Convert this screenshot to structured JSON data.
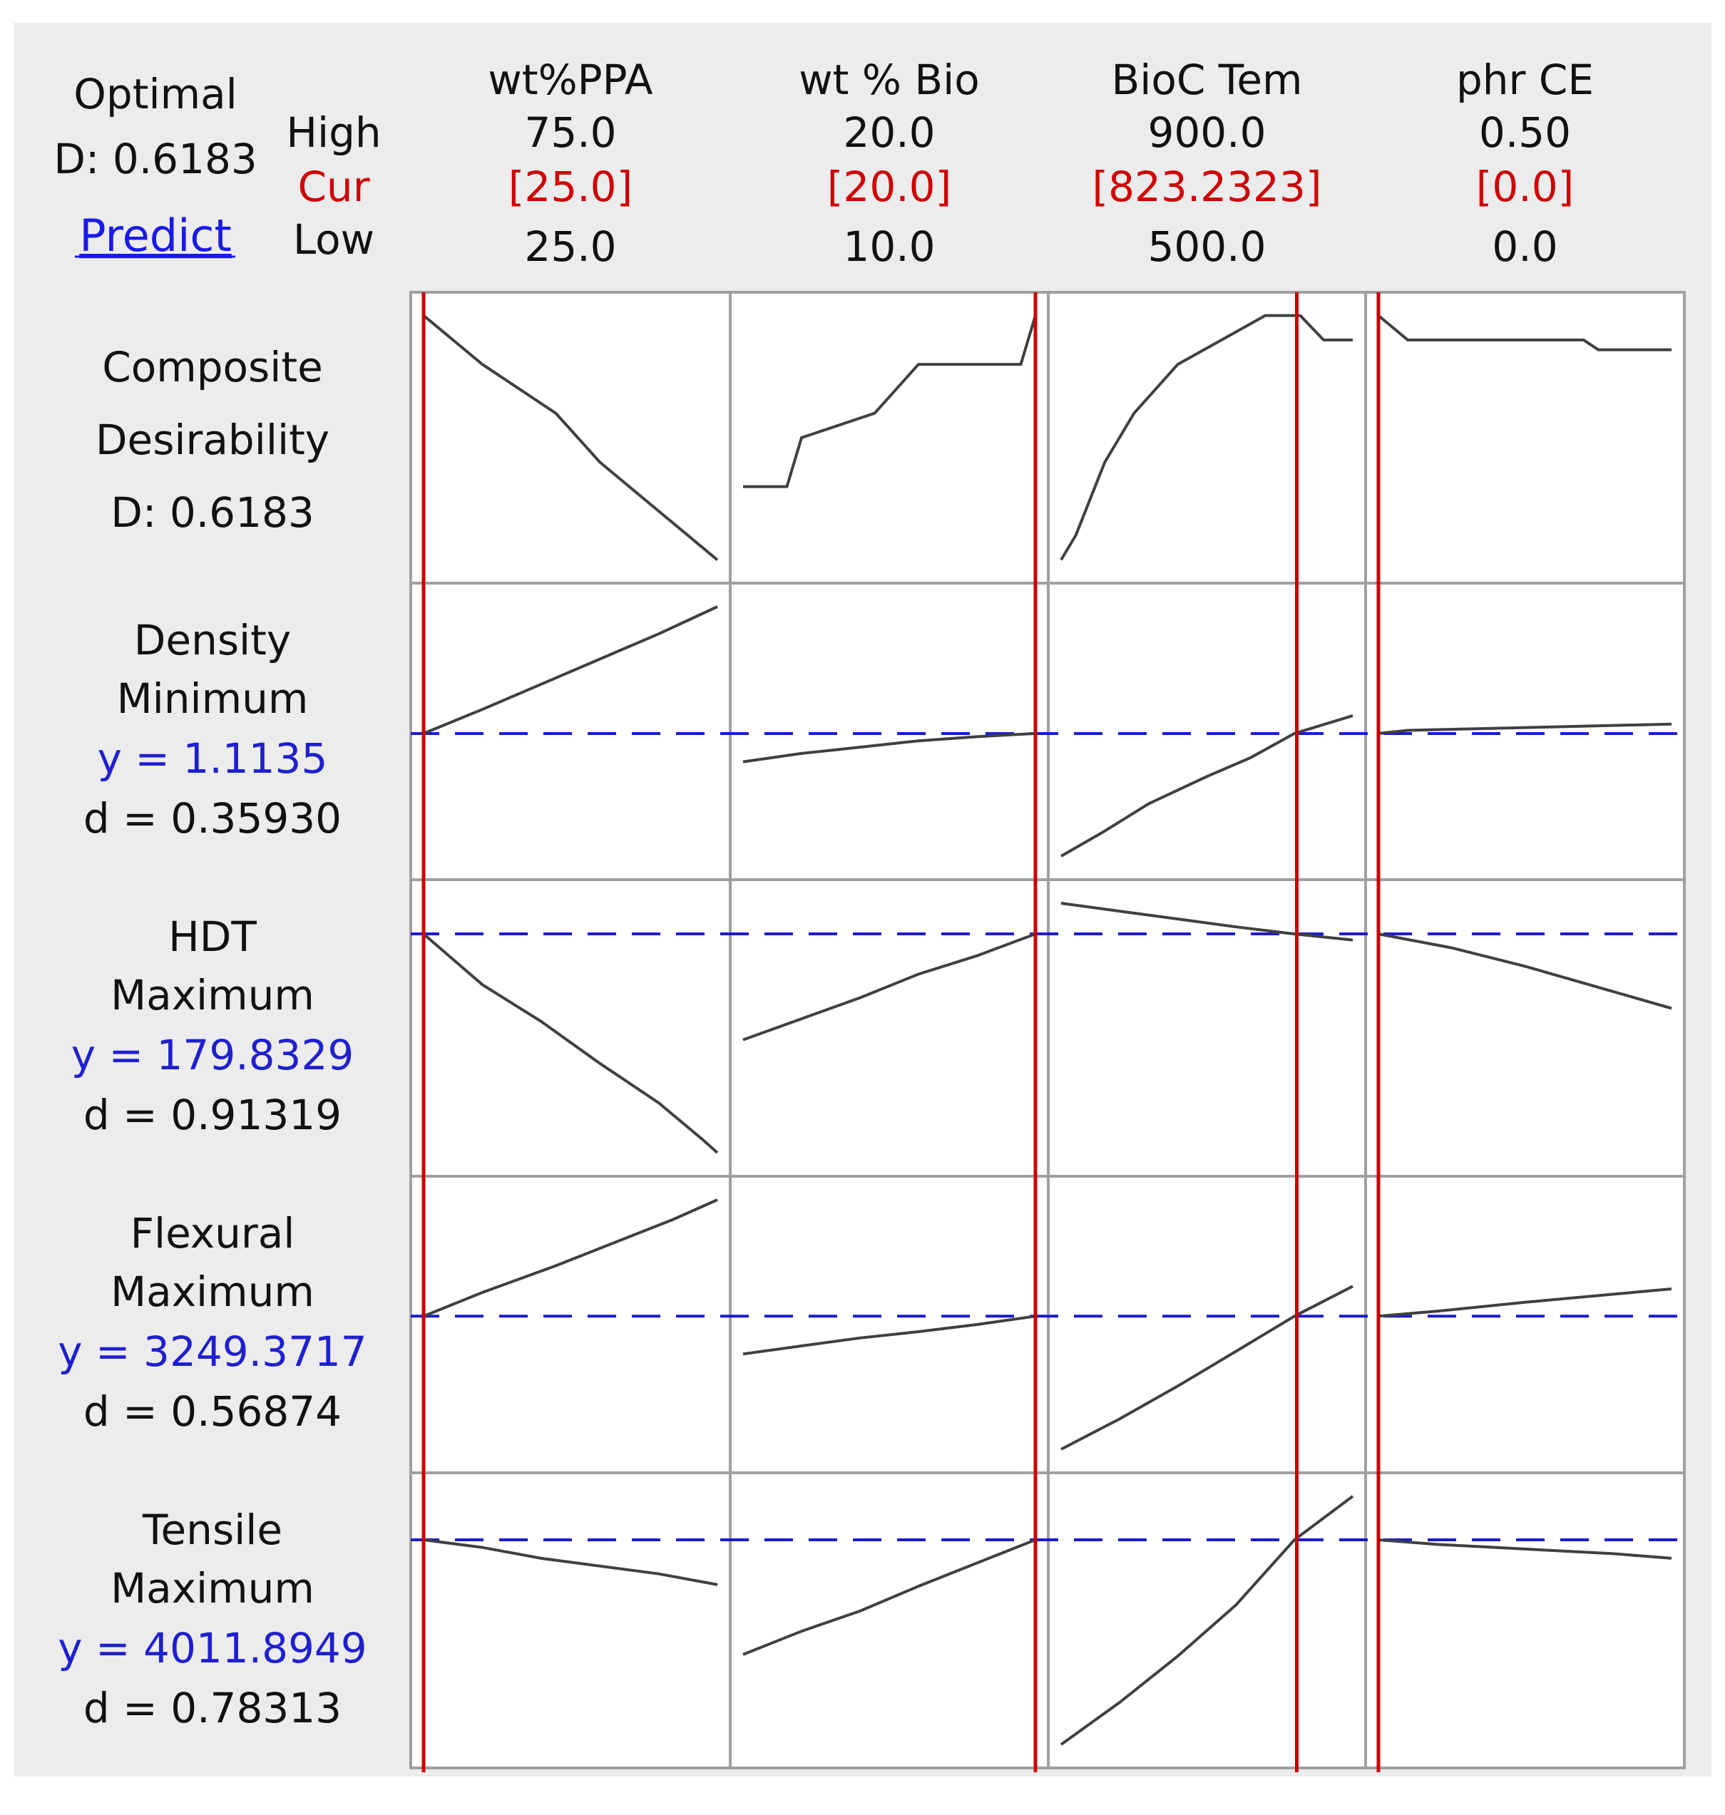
{
  "header": {
    "optimal_label": "Optimal",
    "optimal_d": "D: 0.6183",
    "predict_link": "Predict",
    "row_labels": {
      "high": "High",
      "cur": "Cur",
      "low": "Low"
    }
  },
  "factors": [
    {
      "name": "wt%PPA",
      "high": "75.0",
      "cur": "[25.0]",
      "low": "25.0"
    },
    {
      "name": "wt % Bio",
      "high": "20.0",
      "cur": "[20.0]",
      "low": "10.0"
    },
    {
      "name": "BioC Tem",
      "high": "900.0",
      "cur": "[823.2323]",
      "low": "500.0"
    },
    {
      "name": "phr CE",
      "high": "0.50",
      "cur": "[0.0]",
      "low": "0.0"
    }
  ],
  "responses": [
    {
      "line1": "Composite",
      "line2": "Desirability",
      "line3": "D: 0.6183"
    },
    {
      "line1": "Density",
      "line2": "Minimum",
      "y": "y  =  1.1135",
      "d": "d  =  0.35930"
    },
    {
      "line1": "HDT",
      "line2": "Maximum",
      "y": "y  =  179.8329",
      "d": "d  =  0.91319"
    },
    {
      "line1": "Flexural",
      "line2": "Maximum",
      "y": "y  =  3249.3717",
      "d": "d  =  0.56874"
    },
    {
      "line1": "Tensile",
      "line2": "Maximum",
      "y": "y  =  4011.8949",
      "d": "d  =  0.78313"
    }
  ],
  "colors": {
    "current_line": "#cc0000",
    "reference_line": "#1a1ad6",
    "curve": "#404040",
    "cur_text": "#d00000",
    "y_text": "#1f1fd0",
    "link": "#1a1ae6",
    "panel": "#ececec"
  },
  "chart_data": {
    "type": "line",
    "title": "Optimal D: 0.6183",
    "factors": [
      "wt%PPA",
      "wt % Bio",
      "BioC Tem",
      "phr CE"
    ],
    "factor_ranges": [
      [
        25.0,
        75.0
      ],
      [
        10.0,
        20.0
      ],
      [
        500.0,
        900.0
      ],
      [
        0.0,
        0.5
      ]
    ],
    "current_settings": [
      25.0,
      20.0,
      823.2323,
      0.0
    ],
    "grid": false,
    "rows": [
      {
        "response": "Composite Desirability",
        "value": 0.6183,
        "series": [
          [
            [
              0,
              0.62
            ],
            [
              0.2,
              0.61
            ],
            [
              0.45,
              0.6
            ],
            [
              0.6,
              0.59
            ],
            [
              0.8,
              0.58
            ],
            [
              1,
              0.57
            ]
          ],
          [
            [
              0,
              0.585
            ],
            [
              0.15,
              0.585
            ],
            [
              0.2,
              0.595
            ],
            [
              0.45,
              0.6
            ],
            [
              0.6,
              0.61
            ],
            [
              0.8,
              0.61
            ],
            [
              0.95,
              0.61
            ],
            [
              1,
              0.62
            ]
          ],
          [
            [
              0,
              0.57
            ],
            [
              0.05,
              0.575
            ],
            [
              0.15,
              0.59
            ],
            [
              0.25,
              0.6
            ],
            [
              0.4,
              0.61
            ],
            [
              0.55,
              0.615
            ],
            [
              0.7,
              0.62
            ],
            [
              0.78,
              0.62
            ],
            [
              0.82,
              0.62
            ],
            [
              0.9,
              0.615
            ],
            [
              1,
              0.615
            ]
          ],
          [
            [
              0,
              0.62
            ],
            [
              0.1,
              0.615
            ],
            [
              0.7,
              0.615
            ],
            [
              0.75,
              0.613
            ],
            [
              1,
              0.613
            ]
          ]
        ]
      },
      {
        "response": "Density",
        "goal": "Minimum",
        "y": 1.1135,
        "d": 0.3593,
        "series": [
          [
            [
              0,
              1.1135
            ],
            [
              0.2,
              1.125
            ],
            [
              0.4,
              1.137
            ],
            [
              0.6,
              1.149
            ],
            [
              0.8,
              1.161
            ],
            [
              1,
              1.174
            ]
          ],
          [
            [
              0,
              1.1
            ],
            [
              0.2,
              1.104
            ],
            [
              0.4,
              1.107
            ],
            [
              0.6,
              1.11
            ],
            [
              0.8,
              1.112
            ],
            [
              1,
              1.1135
            ]
          ],
          [
            [
              0,
              1.055
            ],
            [
              0.15,
              1.067
            ],
            [
              0.3,
              1.08
            ],
            [
              0.5,
              1.093
            ],
            [
              0.65,
              1.102
            ],
            [
              0.8,
              1.1135
            ],
            [
              1,
              1.122
            ]
          ],
          [
            [
              0,
              1.1135
            ],
            [
              0.1,
              1.115
            ],
            [
              0.4,
              1.116
            ],
            [
              0.7,
              1.117
            ],
            [
              1,
              1.118
            ]
          ]
        ]
      },
      {
        "response": "HDT",
        "goal": "Maximum",
        "y": 179.8329,
        "d": 0.91319,
        "series": [
          [
            [
              0,
              179.83
            ],
            [
              0.2,
              177.9
            ],
            [
              0.4,
              176.5
            ],
            [
              0.6,
              174.9
            ],
            [
              0.8,
              173.4
            ],
            [
              0.95,
              172.0
            ],
            [
              1,
              171.5
            ]
          ],
          [
            [
              0,
              175.8
            ],
            [
              0.2,
              176.6
            ],
            [
              0.4,
              177.4
            ],
            [
              0.6,
              178.3
            ],
            [
              0.8,
              179.0
            ],
            [
              1,
              179.83
            ]
          ],
          [
            [
              0,
              181.0
            ],
            [
              0.2,
              180.7
            ],
            [
              0.4,
              180.4
            ],
            [
              0.6,
              180.1
            ],
            [
              0.8,
              179.83
            ],
            [
              1,
              179.6
            ]
          ],
          [
            [
              0,
              179.83
            ],
            [
              0.25,
              179.3
            ],
            [
              0.5,
              178.6
            ],
            [
              0.75,
              177.8
            ],
            [
              1,
              177.0
            ]
          ]
        ]
      },
      {
        "response": "Flexural",
        "goal": "Maximum",
        "y": 3249.3717,
        "d": 0.56874,
        "series": [
          [
            [
              0,
              3249.4
            ],
            [
              0.2,
              3276
            ],
            [
              0.45,
              3306
            ],
            [
              0.65,
              3332
            ],
            [
              0.85,
              3358
            ],
            [
              1,
              3380
            ]
          ],
          [
            [
              0,
              3207
            ],
            [
              0.2,
              3216
            ],
            [
              0.4,
              3225
            ],
            [
              0.6,
              3232
            ],
            [
              0.8,
              3240
            ],
            [
              1,
              3249.4
            ]
          ],
          [
            [
              0,
              3100
            ],
            [
              0.2,
              3134
            ],
            [
              0.4,
              3171
            ],
            [
              0.6,
              3210
            ],
            [
              0.8,
              3249.4
            ],
            [
              1,
              3283
            ]
          ],
          [
            [
              0,
              3249.4
            ],
            [
              0.2,
              3255
            ],
            [
              0.5,
              3265
            ],
            [
              0.8,
              3274
            ],
            [
              1,
              3280
            ]
          ]
        ]
      },
      {
        "response": "Tensile",
        "goal": "Maximum",
        "y": 4011.8949,
        "d": 0.78313,
        "series": [
          [
            [
              0,
              4011.9
            ],
            [
              0.2,
              4007
            ],
            [
              0.4,
              4000
            ],
            [
              0.6,
              3995
            ],
            [
              0.8,
              3990
            ],
            [
              1,
              3983
            ]
          ],
          [
            [
              0,
              3938
            ],
            [
              0.2,
              3953
            ],
            [
              0.4,
              3966
            ],
            [
              0.6,
              3982
            ],
            [
              0.8,
              3997
            ],
            [
              1,
              4011.9
            ]
          ],
          [
            [
              0,
              3880
            ],
            [
              0.2,
              3907
            ],
            [
              0.4,
              3937
            ],
            [
              0.6,
              3970
            ],
            [
              0.8,
              4011.9
            ],
            [
              1,
              4040
            ]
          ],
          [
            [
              0,
              4011.9
            ],
            [
              0.2,
              4009
            ],
            [
              0.5,
              4006
            ],
            [
              0.8,
              4003
            ],
            [
              1,
              4000
            ]
          ]
        ]
      }
    ]
  }
}
